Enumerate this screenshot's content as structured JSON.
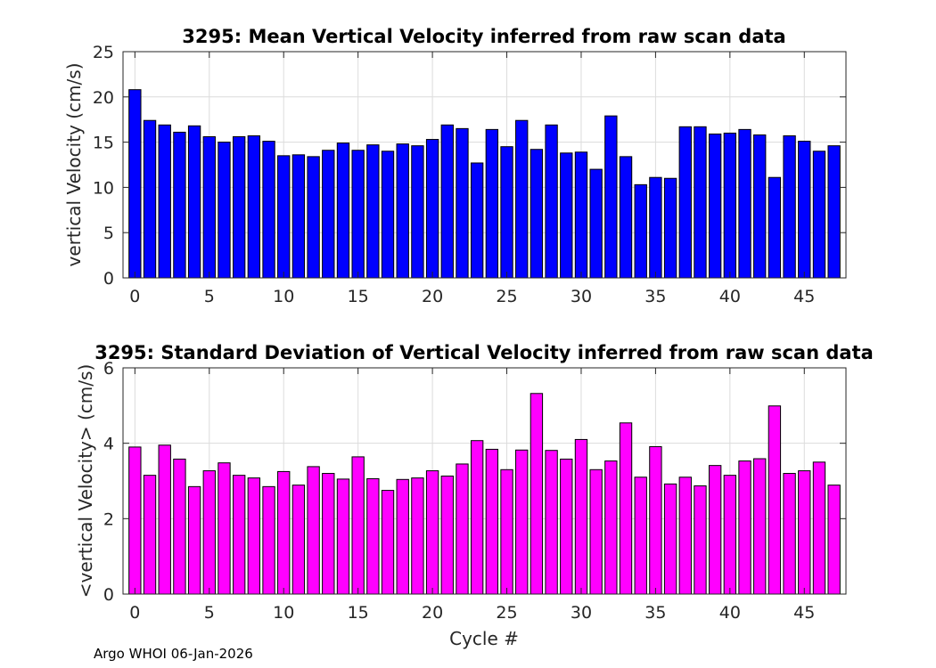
{
  "chart_data": [
    {
      "type": "bar",
      "title": "3295: Mean Vertical Velocity inferred from raw scan data",
      "xlabel": "",
      "ylabel": "vertical Velocity (cm/s)",
      "xlim": [
        -0.8,
        47.8
      ],
      "ylim": [
        0,
        25
      ],
      "xticks": [
        0,
        5,
        10,
        15,
        20,
        25,
        30,
        35,
        40,
        45
      ],
      "yticks": [
        0,
        5,
        10,
        15,
        20,
        25
      ],
      "grid": true,
      "bar_color": "#0000ff",
      "x": [
        0,
        1,
        2,
        3,
        4,
        5,
        6,
        7,
        8,
        9,
        10,
        11,
        12,
        13,
        14,
        15,
        16,
        17,
        18,
        19,
        20,
        21,
        22,
        23,
        24,
        25,
        26,
        27,
        28,
        29,
        30,
        31,
        32,
        33,
        34,
        35,
        36,
        37,
        38,
        39,
        40,
        41,
        42,
        43,
        44,
        45,
        46,
        47
      ],
      "values": [
        20.8,
        17.4,
        16.9,
        16.1,
        16.8,
        15.6,
        15.0,
        15.6,
        15.7,
        15.1,
        13.5,
        13.6,
        13.4,
        14.1,
        14.9,
        14.1,
        14.7,
        14.0,
        14.8,
        14.6,
        15.3,
        16.9,
        16.5,
        12.7,
        16.4,
        14.5,
        17.4,
        14.2,
        16.9,
        13.8,
        13.9,
        12.0,
        17.9,
        13.4,
        10.3,
        11.1,
        11.0,
        16.7,
        16.7,
        15.9,
        16.0,
        16.4,
        15.8,
        11.1,
        15.7,
        15.1,
        14.0,
        14.6
      ]
    },
    {
      "type": "bar",
      "title": "3295: Standard Deviation of Vertical Velocity inferred from raw scan data",
      "xlabel": "Cycle #",
      "ylabel": "<vertical Velocity> (cm/s)",
      "xlim": [
        -0.8,
        47.8
      ],
      "ylim": [
        0,
        6
      ],
      "xticks": [
        0,
        5,
        10,
        15,
        20,
        25,
        30,
        35,
        40,
        45
      ],
      "yticks": [
        0,
        2,
        4,
        6
      ],
      "grid": true,
      "bar_color": "#ff00ff",
      "x": [
        0,
        1,
        2,
        3,
        4,
        5,
        6,
        7,
        8,
        9,
        10,
        11,
        12,
        13,
        14,
        15,
        16,
        17,
        18,
        19,
        20,
        21,
        22,
        23,
        24,
        25,
        26,
        27,
        28,
        29,
        30,
        31,
        32,
        33,
        34,
        35,
        36,
        37,
        38,
        39,
        40,
        41,
        42,
        43,
        44,
        45,
        46,
        47
      ],
      "values": [
        3.9,
        3.15,
        3.95,
        3.58,
        2.85,
        3.27,
        3.48,
        3.15,
        3.08,
        2.85,
        3.25,
        2.89,
        3.38,
        3.2,
        3.05,
        3.64,
        3.06,
        2.75,
        3.04,
        3.08,
        3.27,
        3.13,
        3.45,
        4.07,
        3.84,
        3.3,
        3.82,
        5.32,
        3.81,
        3.58,
        4.1,
        3.3,
        3.53,
        4.54,
        3.1,
        3.91,
        2.92,
        3.1,
        2.87,
        3.41,
        3.15,
        3.53,
        3.59,
        4.99,
        3.2,
        3.27,
        3.5,
        2.89
      ]
    }
  ],
  "footer": "Argo WHOI 06-Jan-2026"
}
